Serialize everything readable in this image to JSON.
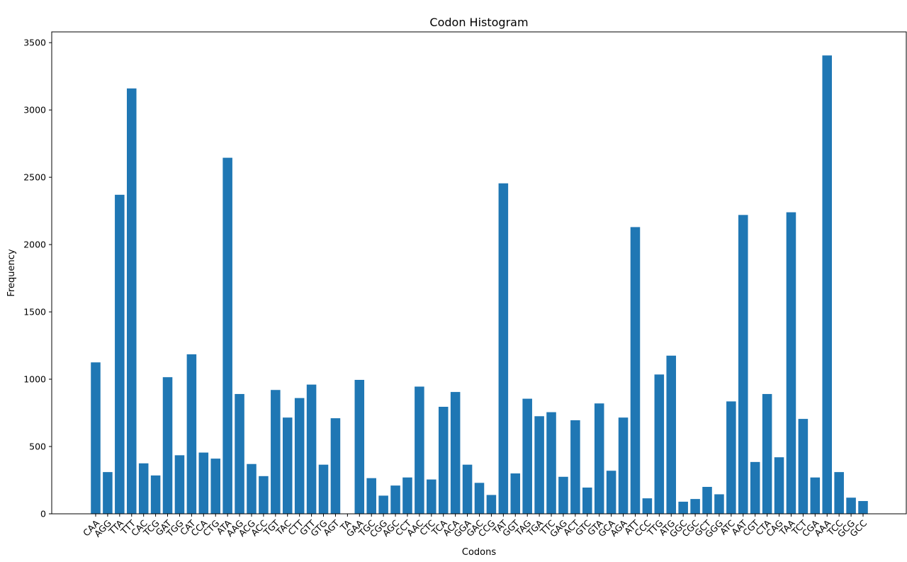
{
  "chart_data": {
    "type": "bar",
    "title": "Codon Histogram",
    "xlabel": "Codons",
    "ylabel": "Frequency",
    "ylim": [
      0,
      3580
    ],
    "yticks": [
      0,
      500,
      1000,
      1500,
      2000,
      2500,
      3000,
      3500
    ],
    "grid": false,
    "bar_color": "#1f77b4",
    "categories": [
      "CAA",
      "AGG",
      "TTA",
      "TTT",
      "CAC",
      "TCG",
      "GAT",
      "TGG",
      "CAT",
      "CCA",
      "CTG",
      "ATA",
      "AAG",
      "ACG",
      "ACC",
      "TGT",
      "TAC",
      "CTT",
      "GTT",
      "GTG",
      "AGT",
      "TA",
      "GAA",
      "TGC",
      "CGG",
      "AGC",
      "CCT",
      "AAC",
      "CTC",
      "TCA",
      "ACA",
      "GGA",
      "GAC",
      "CCG",
      "TAT",
      "GGT",
      "TAG",
      "TGA",
      "TTC",
      "GAG",
      "ACT",
      "GTC",
      "GTA",
      "GCA",
      "AGA",
      "ATT",
      "CCC",
      "TTG",
      "ATG",
      "GGC",
      "CGC",
      "GCT",
      "GGG",
      "ATC",
      "AAT",
      "CGT",
      "CTA",
      "CAG",
      "TAA",
      "TCT",
      "CGA",
      "AAA",
      "TCC",
      "GCG",
      "GCC"
    ],
    "values": [
      1125,
      310,
      2370,
      3160,
      375,
      285,
      1015,
      435,
      1185,
      455,
      410,
      2645,
      890,
      370,
      280,
      920,
      715,
      860,
      960,
      365,
      710,
      2,
      995,
      265,
      135,
      210,
      270,
      945,
      255,
      795,
      905,
      365,
      230,
      140,
      2455,
      300,
      855,
      725,
      755,
      275,
      695,
      195,
      820,
      320,
      715,
      2130,
      115,
      1035,
      1175,
      90,
      110,
      200,
      145,
      835,
      2220,
      385,
      890,
      420,
      2240,
      705,
      270,
      3405,
      310,
      120,
      95
    ]
  }
}
